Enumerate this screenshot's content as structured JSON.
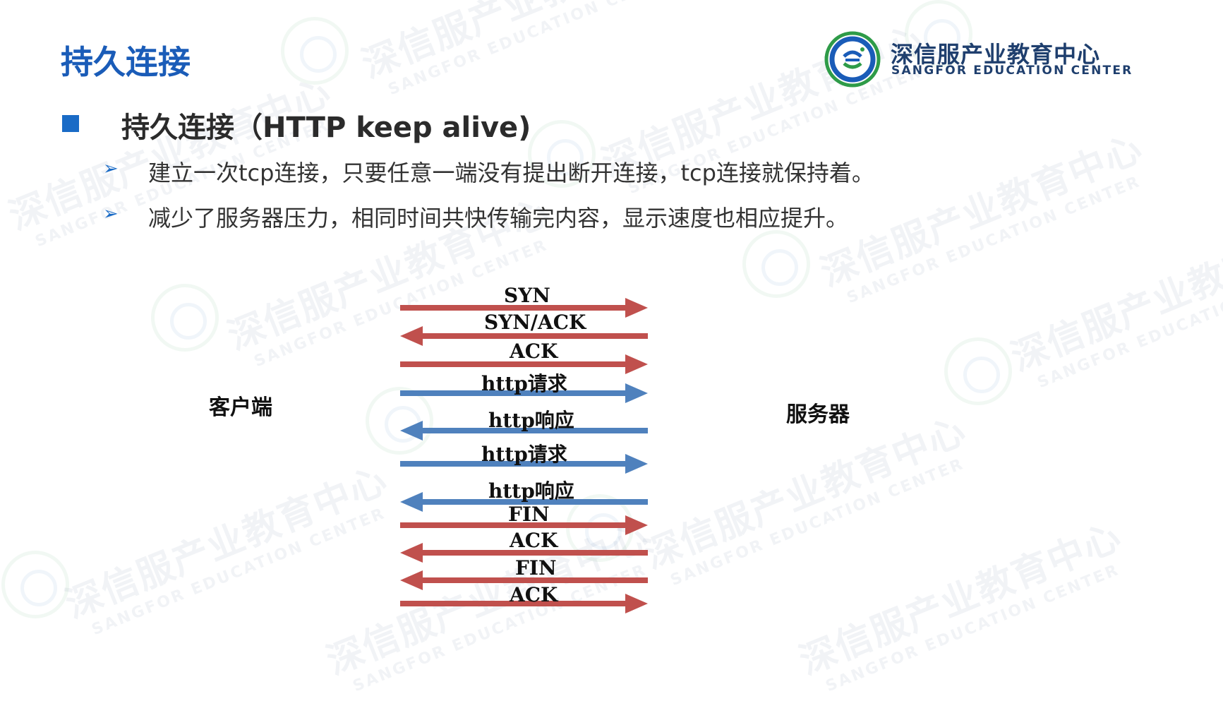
{
  "slide": {
    "title": "持久连接",
    "heading": "持久连接（HTTP keep alive)",
    "bullet_icon": "square-bullet-icon",
    "sub_bullet_icon": "arrow-bullet-icon",
    "points": [
      "建立一次tcp连接，只要任意一端没有提出断开连接，tcp连接就保持着。",
      "减少了服务器压力，相同时间共快传输完内容，显示速度也相应提升。"
    ]
  },
  "logo": {
    "name_cn": "深信服产业教育中心",
    "name_en": "SANGFOR EDUCATION CENTER",
    "icon": "sangfor-education-seal-icon"
  },
  "watermark": {
    "text_cn": "深信服产业教育中心",
    "text_en": "SANGFOR EDUCATION CENTER"
  },
  "diagram": {
    "client_label": "客户端",
    "server_label": "服务器",
    "colors": {
      "tcp": "#c0504d",
      "http": "#4f81bd"
    },
    "messages": [
      {
        "label": "SYN",
        "direction": "to-server",
        "kind": "tcp"
      },
      {
        "label": "SYN/ACK",
        "direction": "to-client",
        "kind": "tcp"
      },
      {
        "label": "ACK",
        "direction": "to-server",
        "kind": "tcp"
      },
      {
        "label": "http请求",
        "direction": "to-server",
        "kind": "http"
      },
      {
        "label": "http响应",
        "direction": "to-client",
        "kind": "http"
      },
      {
        "label": "http请求",
        "direction": "to-server",
        "kind": "http"
      },
      {
        "label": "http响应",
        "direction": "to-client",
        "kind": "http"
      },
      {
        "label": "FIN",
        "direction": "to-server",
        "kind": "tcp"
      },
      {
        "label": "ACK",
        "direction": "to-client",
        "kind": "tcp"
      },
      {
        "label": "FIN",
        "direction": "to-client",
        "kind": "tcp"
      },
      {
        "label": "ACK",
        "direction": "to-server",
        "kind": "tcp"
      }
    ]
  }
}
